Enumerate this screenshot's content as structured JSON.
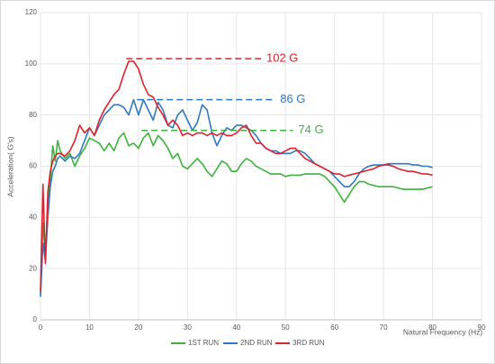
{
  "chart_data": {
    "type": "line",
    "x_label": "Natural Frequency (Hz)",
    "y_label": "Acceleration( G's)",
    "x": [
      0,
      0.5,
      1,
      1.5,
      2,
      2.5,
      3,
      3.5,
      4,
      5,
      6,
      7,
      8,
      9,
      10,
      11,
      12,
      13,
      14,
      15,
      16,
      17,
      18,
      19,
      20,
      21,
      22,
      23,
      24,
      25,
      26,
      27,
      28,
      29,
      30,
      31,
      32,
      33,
      34,
      35,
      36,
      37,
      38,
      39,
      40,
      41,
      42,
      43,
      44,
      45,
      46,
      47,
      48,
      49,
      50,
      51,
      52,
      53,
      54,
      55,
      56,
      57,
      58,
      59,
      60,
      61,
      62,
      63,
      64,
      65,
      66,
      67,
      68,
      69,
      70,
      71,
      72,
      73,
      74,
      75,
      76,
      77,
      78,
      79,
      80
    ],
    "series": [
      {
        "name": "1ST RUN",
        "color": "#3cb33c",
        "values": [
          10,
          38,
          25,
          45,
          55,
          68,
          62,
          70,
          66,
          63,
          65,
          60,
          64,
          67,
          71,
          70,
          69,
          66,
          69,
          66,
          71,
          73,
          68,
          69,
          67,
          71,
          73,
          68,
          72,
          70,
          67,
          63,
          65,
          60,
          59,
          61,
          63,
          61,
          58,
          56,
          59,
          62,
          61,
          58,
          58,
          61,
          63,
          62,
          60,
          59,
          58,
          57,
          57,
          57,
          56,
          56.5,
          56.5,
          56.5,
          57,
          57,
          57,
          57,
          56,
          54,
          52,
          49,
          46,
          49,
          52,
          54,
          54,
          53,
          52.5,
          52,
          52,
          52,
          52,
          51.5,
          51,
          51,
          51,
          51,
          51,
          51.5,
          52
        ]
      },
      {
        "name": "2ND RUN",
        "color": "#2e78c8",
        "values": [
          9,
          30,
          23,
          40,
          52,
          58,
          60,
          63,
          64,
          62,
          64,
          63,
          65,
          70,
          75,
          72,
          76,
          80,
          82,
          84,
          84,
          83,
          80,
          86,
          80,
          86,
          82,
          78,
          85,
          82,
          76,
          75,
          80,
          82,
          78,
          74,
          77,
          84,
          82,
          73,
          68,
          72,
          75,
          74,
          76,
          76,
          75,
          74,
          72,
          69,
          67,
          66,
          66,
          65,
          65,
          65,
          66,
          66,
          65,
          63,
          61,
          60,
          59,
          58,
          56,
          54,
          52,
          52,
          54,
          57,
          59,
          60,
          60.5,
          60.5,
          60.5,
          61,
          61,
          61,
          61,
          61,
          60.5,
          60.5,
          60,
          60,
          59.5
        ]
      },
      {
        "name": "3RD RUN",
        "color": "#e0202a",
        "values": [
          11,
          53,
          22,
          50,
          58,
          62,
          64,
          65,
          65,
          64,
          66,
          70,
          76,
          73,
          75,
          72,
          78,
          82,
          85,
          88,
          90,
          96,
          101,
          101,
          98,
          92,
          88,
          87,
          83,
          80,
          76,
          78,
          76,
          72,
          73,
          72,
          73,
          73,
          72,
          73,
          72,
          73,
          72,
          72,
          73,
          75,
          76,
          72,
          69,
          69,
          67,
          66,
          65,
          65,
          66,
          67,
          67,
          65,
          63,
          62,
          61,
          60,
          59,
          58,
          57,
          57,
          56,
          56.5,
          57,
          57.5,
          58,
          58.5,
          59,
          60,
          60.5,
          60.5,
          60,
          59,
          58.5,
          58,
          58,
          57.5,
          57,
          57,
          56.5
        ]
      }
    ],
    "annotations": [
      {
        "text": "102 G",
        "y": 102,
        "x": [
          17.5,
          45
        ],
        "color": "#e0202a"
      },
      {
        "text": "86 G",
        "y": 86,
        "x": [
          19.7,
          47.8
        ],
        "color": "#2e78c8"
      },
      {
        "text": "74 G",
        "y": 74,
        "x": [
          20.6,
          51.5
        ],
        "color": "#3cb33c"
      }
    ],
    "xlim": [
      0,
      90
    ],
    "xticks": [
      0,
      10,
      20,
      30,
      40,
      50,
      60,
      70,
      80,
      90
    ],
    "ylim": [
      0,
      120
    ],
    "yticks": [
      0,
      20,
      40,
      60,
      80,
      100,
      120
    ],
    "grid": true,
    "legend": "bottom"
  }
}
